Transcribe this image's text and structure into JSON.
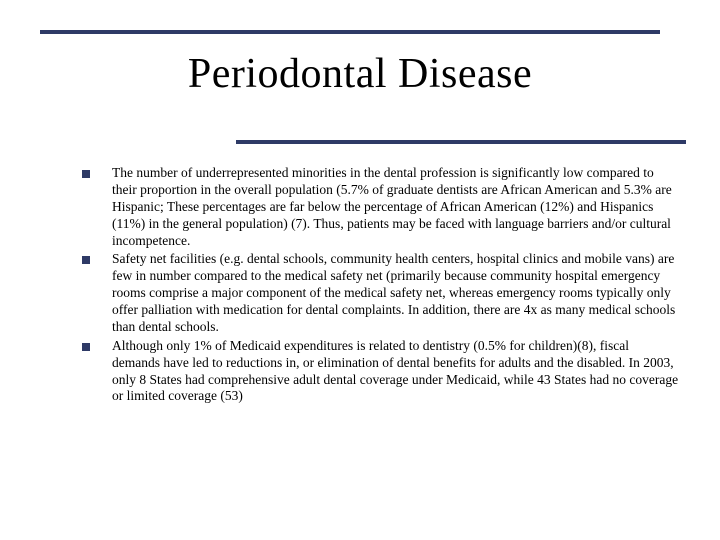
{
  "colors": {
    "rule": "#2e3a66",
    "title": "#000000",
    "body": "#000000",
    "bullet": "#2e3a66",
    "background": "#ffffff"
  },
  "title": "Periodontal Disease",
  "bullets": [
    "The number of underrepresented minorities in the dental profession is significantly low compared to their proportion in the overall population (5.7% of graduate dentists are African American and 5.3% are Hispanic; These percentages are far below the percentage of African American (12%) and Hispanics (11%)  in the general population) (7). Thus, patients may be faced with language barriers and/or cultural incompetence.",
    "Safety net facilities (e.g. dental schools, community health centers, hospital clinics and mobile vans) are few in number compared to the medical safety net (primarily because community hospital emergency rooms comprise a major component of the medical safety net, whereas emergency rooms typically only offer palliation with medication for dental complaints. In addition, there are 4x as many medical schools than dental schools.",
    "Although only 1% of Medicaid expenditures is related to dentistry (0.5% for children)(8), fiscal demands have led to reductions in, or elimination of dental benefits for adults and the disabled. In 2003, only 8 States had comprehensive adult dental coverage under Medicaid, while 43 States had no coverage or limited coverage (53)"
  ]
}
